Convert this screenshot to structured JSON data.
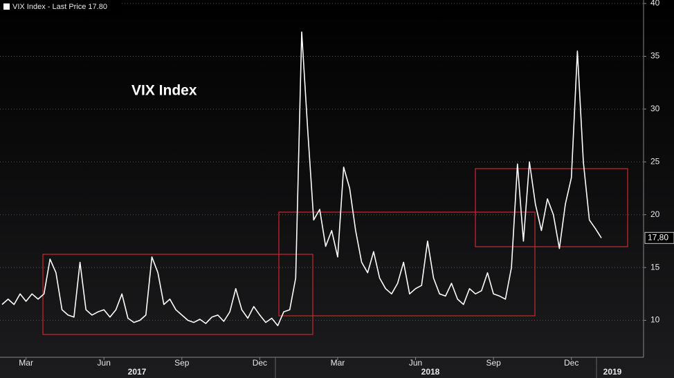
{
  "chart_data": {
    "type": "line",
    "annotation": "VIX Index",
    "categories": [
      null,
      null,
      null,
      null,
      "Mar",
      null,
      null,
      null,
      null,
      null,
      null,
      null,
      null,
      null,
      null,
      null,
      null,
      "Jun",
      null,
      null,
      null,
      null,
      null,
      null,
      null,
      null,
      null,
      null,
      null,
      null,
      "Sep",
      null,
      null,
      null,
      null,
      null,
      null,
      null,
      null,
      null,
      null,
      null,
      null,
      "Dec",
      null,
      null,
      null,
      null,
      null,
      null,
      null,
      null,
      null,
      null,
      null,
      null,
      "Mar",
      null,
      null,
      null,
      null,
      null,
      null,
      null,
      null,
      null,
      null,
      null,
      null,
      "Jun",
      null,
      null,
      null,
      null,
      null,
      null,
      null,
      null,
      null,
      null,
      null,
      null,
      "Sep",
      null,
      null,
      null,
      null,
      null,
      null,
      null,
      null,
      null,
      null,
      null,
      null,
      "Dec",
      null,
      null,
      null,
      null,
      null
    ],
    "x_group_labels": [
      "2017",
      "2018",
      "2019"
    ],
    "series": [
      {
        "name": "VIX Index - Last Price 17.80",
        "color": "#ffffff",
        "values": [
          11.5,
          12,
          11.5,
          12.5,
          11.8,
          12.5,
          12,
          12.5,
          15.8,
          14.5,
          11,
          10.5,
          10.3,
          15.5,
          11,
          10.5,
          10.8,
          11,
          10.3,
          11,
          12.5,
          10.2,
          9.8,
          10,
          10.5,
          16,
          14.5,
          11.5,
          12,
          11,
          10.5,
          10,
          9.8,
          10.1,
          9.7,
          10.3,
          10.5,
          9.9,
          10.8,
          13,
          11,
          10.2,
          11.3,
          10.5,
          9.8,
          10.2,
          9.5,
          10.8,
          11,
          14,
          37.3,
          28,
          19.5,
          20.5,
          17,
          18.5,
          16,
          24.5,
          22.5,
          18.5,
          15.5,
          14.5,
          16.5,
          14,
          13,
          12.5,
          13.5,
          15.5,
          12.5,
          13,
          13.3,
          17.5,
          14,
          12.5,
          12.3,
          13.5,
          12,
          11.5,
          13,
          12.5,
          12.8,
          14.5,
          12.5,
          12.3,
          12,
          15,
          24.8,
          17.5,
          25,
          21,
          18.5,
          21.5,
          20,
          16.8,
          21,
          23.5,
          35.5,
          25,
          19.5,
          18.7,
          17.8
        ]
      }
    ],
    "last_price": {
      "value": 17.8,
      "label": "17,80"
    },
    "ylim": [
      6.5,
      40.33
    ],
    "yticks": [
      10,
      15,
      20,
      25,
      30,
      35,
      40
    ],
    "grid": true
  }
}
